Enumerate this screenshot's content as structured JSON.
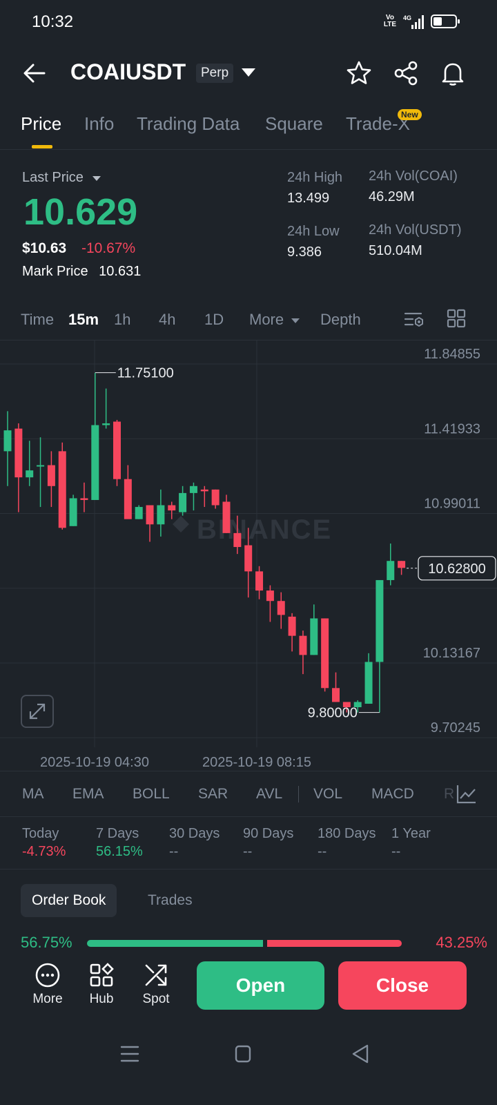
{
  "status_bar": {
    "time": "10:32",
    "volte": "Vo\nLTE",
    "network": "4G",
    "battery_level": 0.35
  },
  "header": {
    "symbol": "COAIUSDT",
    "contract_type": "Perp",
    "icons": [
      "back-arrow-icon",
      "chevron-down-icon",
      "star-icon",
      "share-icon",
      "bell-icon"
    ]
  },
  "tabs": [
    {
      "label": "Price",
      "active": true
    },
    {
      "label": "Info"
    },
    {
      "label": "Trading Data"
    },
    {
      "label": "Square"
    },
    {
      "label": "Trade-X",
      "badge": "New"
    }
  ],
  "price": {
    "last_price_label": "Last Price",
    "last_price": "10.629",
    "usd_price": "$10.63",
    "change_pct": "-10.67%",
    "mark_price_label": "Mark Price",
    "mark_price": "10.631",
    "high_label": "24h High",
    "high": "13.499",
    "low_label": "24h Low",
    "low": "9.386",
    "vol_coai_label": "24h Vol(COAI)",
    "vol_coai": "46.29M",
    "vol_usdt_label": "24h Vol(USDT)",
    "vol_usdt": "510.04M"
  },
  "intervals": {
    "time": "Time",
    "m15": "15m",
    "h1": "1h",
    "h4": "4h",
    "d1": "1D",
    "more": "More",
    "depth": "Depth",
    "active": "15m"
  },
  "chart_data": {
    "type": "candlestick",
    "watermark": "BINANCE",
    "y_ticks": [
      "11.84855",
      "11.41933",
      "10.99011",
      "10.62800",
      "10.13167",
      "9.70245"
    ],
    "ylim": [
      9.6,
      11.94
    ],
    "current_price": 10.628,
    "high_marker": "11.75100",
    "low_marker": "9.80000",
    "x_labels": [
      "2025-10-19 04:30",
      "2025-10-19 08:15"
    ],
    "candles": [
      [
        11.3,
        11.42,
        11.1,
        11.53
      ],
      [
        11.43,
        11.15,
        10.95,
        11.46
      ],
      [
        11.15,
        11.19,
        11.1,
        11.36
      ],
      [
        11.22,
        11.22,
        10.98,
        11.38
      ],
      [
        11.22,
        11.1,
        10.98,
        11.3
      ],
      [
        11.3,
        10.86,
        10.85,
        11.35
      ],
      [
        10.87,
        11.03,
        10.87,
        11.05
      ],
      [
        11.03,
        11.02,
        10.95,
        11.12
      ],
      [
        11.02,
        11.45,
        11.03,
        11.75
      ],
      [
        11.45,
        11.46,
        11.43,
        11.66
      ],
      [
        11.47,
        11.14,
        11.1,
        11.48
      ],
      [
        11.14,
        10.91,
        10.92,
        11.22
      ],
      [
        10.91,
        10.98,
        10.91,
        10.99
      ],
      [
        10.99,
        10.88,
        10.78,
        10.99
      ],
      [
        10.88,
        10.99,
        10.81,
        11.08
      ],
      [
        10.99,
        10.96,
        10.91,
        11.01
      ],
      [
        10.95,
        11.06,
        10.93,
        11.1
      ],
      [
        11.06,
        11.1,
        10.96,
        11.12
      ],
      [
        11.08,
        11.07,
        10.98,
        11.1
      ],
      [
        11.08,
        10.99,
        10.97,
        11.08
      ],
      [
        11.01,
        10.83,
        10.83,
        11.05
      ],
      [
        10.83,
        10.75,
        10.71,
        10.93
      ],
      [
        10.76,
        10.61,
        10.46,
        10.86
      ],
      [
        10.61,
        10.5,
        10.45,
        10.64
      ],
      [
        10.5,
        10.44,
        10.32,
        10.53
      ],
      [
        10.44,
        10.36,
        10.28,
        10.49
      ],
      [
        10.35,
        10.24,
        10.15,
        10.37
      ],
      [
        10.24,
        10.13,
        10.02,
        10.27
      ],
      [
        10.13,
        10.34,
        10.13,
        10.42
      ],
      [
        10.34,
        9.94,
        9.92,
        10.34
      ],
      [
        9.94,
        9.86,
        9.86,
        10.03
      ],
      [
        9.86,
        9.83,
        9.8,
        9.84
      ],
      [
        9.83,
        9.86,
        9.8,
        9.87
      ],
      [
        9.85,
        10.09,
        9.85,
        10.14
      ],
      [
        10.09,
        10.56,
        9.8,
        10.56
      ],
      [
        10.56,
        10.67,
        10.53,
        10.77
      ],
      [
        10.67,
        10.63,
        10.59,
        10.67
      ]
    ]
  },
  "indicators": [
    "MA",
    "EMA",
    "BOLL",
    "SAR",
    "AVL",
    "VOL",
    "MACD",
    "R"
  ],
  "performance": [
    {
      "label": "Today",
      "value": "-4.73%",
      "trend": "down"
    },
    {
      "label": "7 Days",
      "value": "56.15%",
      "trend": "up"
    },
    {
      "label": "30 Days",
      "value": "--",
      "trend": "none"
    },
    {
      "label": "90 Days",
      "value": "--",
      "trend": "none"
    },
    {
      "label": "180 Days",
      "value": "--",
      "trend": "none"
    },
    {
      "label": "1 Year",
      "value": "--",
      "trend": "none"
    }
  ],
  "order_book": {
    "tab_active": "Order Book",
    "tab_other": "Trades",
    "bid_pct": "56.75%",
    "ask_pct": "43.25%",
    "bid_ratio": 0.5675
  },
  "action_bar": {
    "more": "More",
    "hub": "Hub",
    "spot": "Spot",
    "open": "Open",
    "close": "Close"
  },
  "colors": {
    "up": "#2ebd85",
    "down": "#f6465d",
    "bg": "#1e2329",
    "accent": "#f0b90b"
  }
}
